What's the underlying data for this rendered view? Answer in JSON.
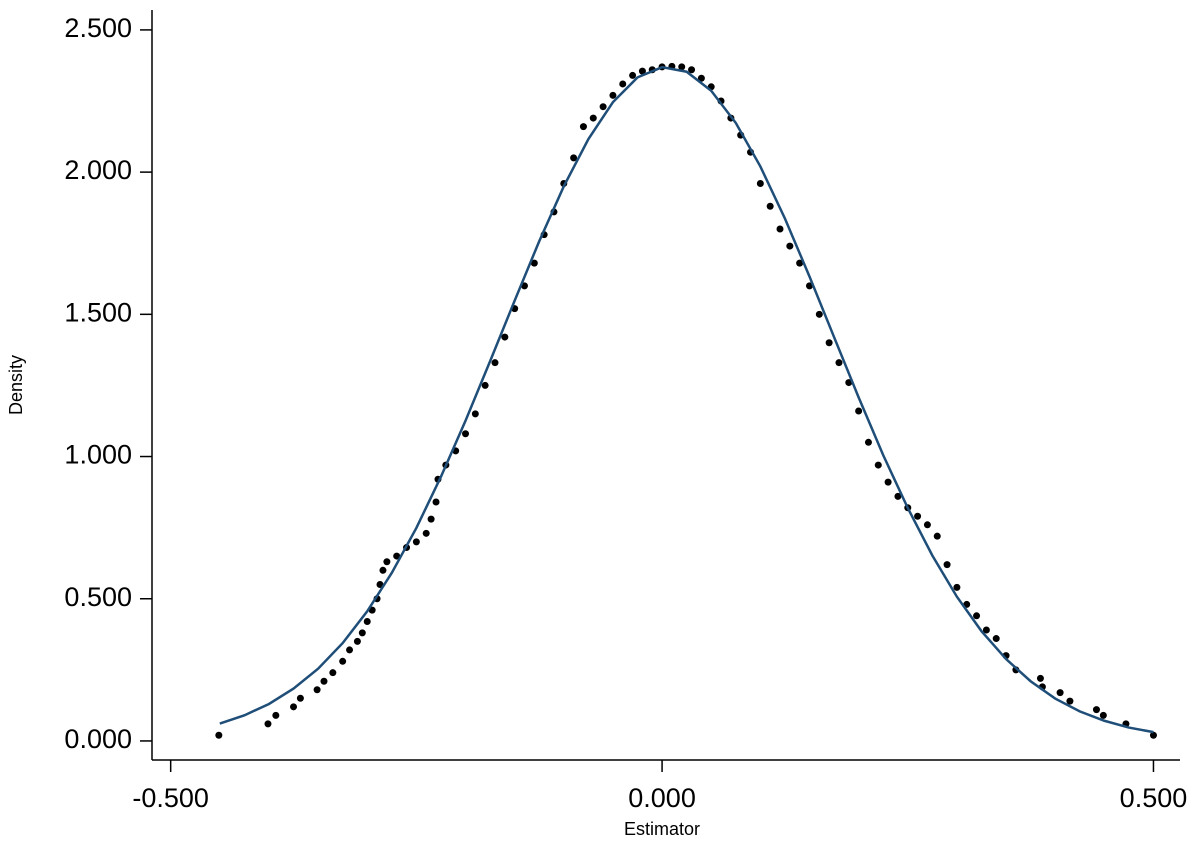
{
  "chart_data": {
    "type": "scatter",
    "x_label": "Estimator",
    "y_label": "Density",
    "xlim": [
      -0.519,
      0.527
    ],
    "ylim": [
      -0.067,
      2.57
    ],
    "xticks": [
      {
        "value": -0.5,
        "label": "-0.500"
      },
      {
        "value": 0,
        "label": "0.000"
      },
      {
        "value": 0.5,
        "label": "0.500"
      }
    ],
    "yticks": [
      {
        "value": 0,
        "label": "0.000"
      },
      {
        "value": 0.5,
        "label": "0.500"
      },
      {
        "value": 1,
        "label": "1.000"
      },
      {
        "value": 1.5,
        "label": "1.500"
      },
      {
        "value": 2,
        "label": "2.000"
      },
      {
        "value": 2.5,
        "label": "2.500"
      }
    ],
    "grid": false,
    "series": [
      {
        "type": "scatter",
        "color": "#000000",
        "x": [
          -0.451,
          -0.401,
          -0.393,
          -0.375,
          -0.368,
          -0.351,
          -0.344,
          -0.335,
          -0.325,
          -0.318,
          -0.31,
          -0.305,
          -0.3,
          -0.295,
          -0.29,
          -0.287,
          -0.284,
          -0.28,
          -0.27,
          -0.26,
          -0.25,
          -0.24,
          -0.235,
          -0.23,
          -0.228,
          -0.22,
          -0.21,
          -0.2,
          -0.19,
          -0.18,
          -0.17,
          -0.16,
          -0.15,
          -0.14,
          -0.13,
          -0.12,
          -0.11,
          -0.1,
          -0.09,
          -0.08,
          -0.07,
          -0.06,
          -0.05,
          -0.04,
          -0.03,
          -0.02,
          -0.01,
          0,
          0.01,
          0.02,
          0.03,
          0.04,
          0.05,
          0.06,
          0.07,
          0.08,
          0.09,
          0.1,
          0.11,
          0.12,
          0.13,
          0.14,
          0.15,
          0.16,
          0.17,
          0.18,
          0.19,
          0.2,
          0.21,
          0.22,
          0.23,
          0.24,
          0.25,
          0.26,
          0.27,
          0.28,
          0.29,
          0.3,
          0.31,
          0.32,
          0.33,
          0.34,
          0.35,
          0.36,
          0.385,
          0.387,
          0.405,
          0.415,
          0.442,
          0.449,
          0.472,
          0.5
        ],
        "values": [
          0.02,
          0.06,
          0.09,
          0.12,
          0.15,
          0.18,
          0.21,
          0.24,
          0.28,
          0.32,
          0.35,
          0.38,
          0.42,
          0.46,
          0.5,
          0.55,
          0.6,
          0.63,
          0.65,
          0.68,
          0.7,
          0.73,
          0.78,
          0.84,
          0.92,
          0.97,
          1.02,
          1.08,
          1.15,
          1.25,
          1.33,
          1.42,
          1.52,
          1.6,
          1.68,
          1.78,
          1.86,
          1.96,
          2.05,
          2.16,
          2.19,
          2.23,
          2.27,
          2.31,
          2.34,
          2.355,
          2.36,
          2.37,
          2.372,
          2.37,
          2.36,
          2.33,
          2.3,
          2.25,
          2.19,
          2.13,
          2.07,
          1.96,
          1.88,
          1.8,
          1.74,
          1.68,
          1.6,
          1.5,
          1.4,
          1.33,
          1.26,
          1.16,
          1.05,
          0.97,
          0.91,
          0.86,
          0.82,
          0.79,
          0.76,
          0.72,
          0.62,
          0.54,
          0.48,
          0.44,
          0.39,
          0.36,
          0.3,
          0.25,
          0.22,
          0.19,
          0.17,
          0.14,
          0.11,
          0.09,
          0.06,
          0.02
        ]
      },
      {
        "type": "line",
        "color": "#1f4e79",
        "x": [
          -0.45,
          -0.425,
          -0.4,
          -0.375,
          -0.35,
          -0.325,
          -0.3,
          -0.275,
          -0.25,
          -0.225,
          -0.2,
          -0.175,
          -0.15,
          -0.125,
          -0.1,
          -0.075,
          -0.05,
          -0.025,
          0,
          0.025,
          0.05,
          0.075,
          0.1,
          0.125,
          0.15,
          0.175,
          0.2,
          0.225,
          0.25,
          0.275,
          0.3,
          0.325,
          0.35,
          0.375,
          0.4,
          0.425,
          0.45,
          0.475,
          0.5
        ],
        "values": [
          0.061,
          0.09,
          0.13,
          0.184,
          0.254,
          0.344,
          0.456,
          0.591,
          0.749,
          0.929,
          1.126,
          1.335,
          1.548,
          1.757,
          1.95,
          2.116,
          2.246,
          2.333,
          2.369,
          2.353,
          2.286,
          2.173,
          2.02,
          1.837,
          1.633,
          1.42,
          1.208,
          1.005,
          0.819,
          0.652,
          0.507,
          0.386,
          0.288,
          0.21,
          0.149,
          0.104,
          0.071,
          0.047,
          0.031
        ]
      }
    ]
  }
}
